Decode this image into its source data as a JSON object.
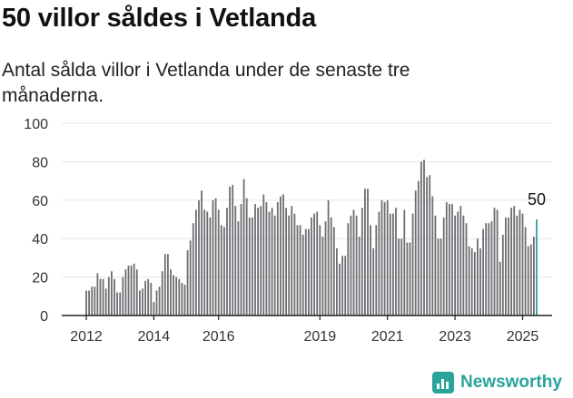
{
  "title": "50 villor såldes i Vetlanda",
  "subtitle": "Antal sålda villor i Vetlanda under de senaste tre månaderna.",
  "brand": "Newsworthy",
  "chart_data": {
    "type": "bar",
    "title": "50 villor såldes i Vetlanda",
    "subtitle": "Antal sålda villor i Vetlanda under de senaste tre månaderna.",
    "ylim": [
      0,
      100
    ],
    "yticks": [
      0,
      20,
      40,
      60,
      80,
      100
    ],
    "xtick_labels": [
      "2012",
      "2014",
      "2016",
      "2019",
      "2021",
      "2023",
      "2025"
    ],
    "xtick_index": [
      0,
      24,
      47,
      83,
      107,
      131,
      155
    ],
    "grid": true,
    "bar_color": "#6e6d72",
    "highlight_color": "#2aa49a",
    "highlight_label": "50",
    "values": [
      13,
      13,
      15,
      15,
      22,
      19,
      19,
      14,
      20,
      23,
      19,
      12,
      12,
      20,
      24,
      26,
      26,
      27,
      24,
      13,
      14,
      18,
      19,
      17,
      7,
      13,
      15,
      23,
      32,
      32,
      24,
      21,
      20,
      19,
      17,
      16,
      34,
      39,
      48,
      55,
      60,
      65,
      55,
      54,
      51,
      60,
      61,
      55,
      47,
      46,
      56,
      67,
      68,
      57,
      49,
      58,
      71,
      61,
      51,
      51,
      58,
      56,
      57,
      63,
      59,
      54,
      56,
      52,
      59,
      62,
      63,
      56,
      52,
      57,
      53,
      47,
      47,
      42,
      45,
      45,
      51,
      53,
      54,
      47,
      41,
      49,
      60,
      51,
      46,
      35,
      27,
      31,
      31,
      48,
      52,
      55,
      52,
      41,
      56,
      66,
      66,
      47,
      35,
      47,
      54,
      60,
      59,
      60,
      53,
      53,
      56,
      40,
      40,
      55,
      38,
      38,
      53,
      65,
      70,
      80,
      81,
      72,
      73,
      62,
      52,
      40,
      40,
      51,
      59,
      58,
      58,
      52,
      54,
      57,
      52,
      48,
      36,
      35,
      33,
      40,
      35,
      45,
      48,
      48,
      49,
      56,
      55,
      28,
      42,
      51,
      51,
      56,
      57,
      52,
      55,
      53,
      46,
      36,
      37,
      41,
      50
    ]
  }
}
